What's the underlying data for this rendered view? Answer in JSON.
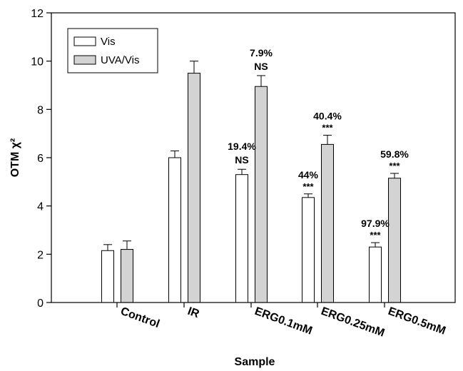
{
  "chart_data": {
    "type": "bar",
    "xlabel": "Sample",
    "ylabel": "OTM χ²",
    "ylim": [
      0,
      12
    ],
    "yticks": [
      0,
      2,
      4,
      6,
      8,
      10,
      12
    ],
    "grid": false,
    "legend_position": "top-left",
    "categories": [
      "Control",
      "IR",
      "ERG0.1mM",
      "ERG0.25mM",
      "ERG0.5mM"
    ],
    "series": [
      {
        "name": "Vis",
        "color": "#ffffff",
        "values": [
          2.15,
          6.0,
          5.3,
          4.35,
          2.3
        ],
        "errors": [
          0.25,
          0.28,
          0.22,
          0.15,
          0.18
        ],
        "annotations": [
          "",
          "",
          "19.4%",
          "44%",
          "97.9%"
        ],
        "significance": [
          "",
          "",
          "NS",
          "***",
          "***"
        ]
      },
      {
        "name": "UVA/Vis",
        "color": "#d3d3d3",
        "values": [
          2.2,
          9.5,
          8.95,
          6.55,
          5.15
        ],
        "errors": [
          0.35,
          0.5,
          0.45,
          0.38,
          0.2
        ],
        "annotations": [
          "",
          "",
          "7.9%",
          "40.4%",
          "59.8%"
        ],
        "significance": [
          "",
          "",
          "NS",
          "***",
          "***"
        ]
      }
    ]
  }
}
